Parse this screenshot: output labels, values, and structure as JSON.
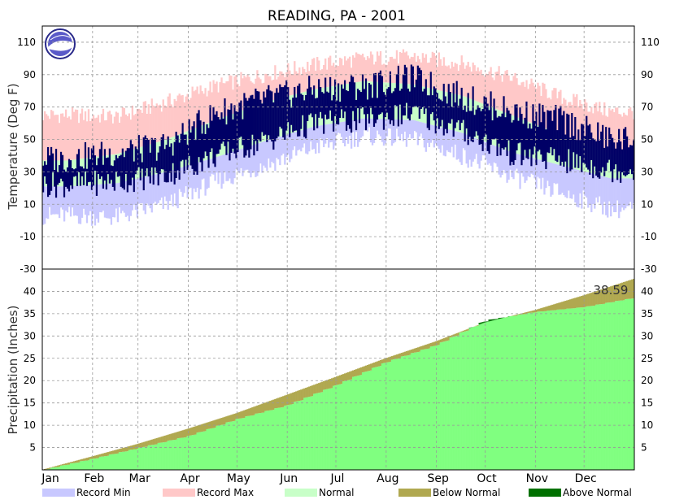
{
  "chart_data": {
    "type": "area",
    "title": "READING, PA - 2001",
    "months": [
      "Jan",
      "Feb",
      "Mar",
      "Apr",
      "May",
      "Jun",
      "Jul",
      "Aug",
      "Sep",
      "Oct",
      "Nov",
      "Dec"
    ],
    "temperature": {
      "ylabel": "Temperature (Deg F)",
      "ylim": [
        -30,
        120
      ],
      "ticks": [
        -30,
        -10,
        10,
        30,
        50,
        70,
        90,
        110
      ],
      "record_max_monthly": [
        65,
        64,
        73,
        83,
        90,
        96,
        100,
        101,
        97,
        88,
        76,
        67
      ],
      "record_min_monthly": [
        3,
        2,
        10,
        24,
        34,
        45,
        52,
        50,
        40,
        27,
        17,
        7
      ],
      "normal_high_monthly": [
        37,
        41,
        50,
        62,
        73,
        81,
        86,
        84,
        77,
        65,
        53,
        41
      ],
      "normal_low_monthly": [
        21,
        23,
        30,
        39,
        49,
        58,
        63,
        62,
        54,
        42,
        34,
        26
      ],
      "actual_high_monthly": [
        38,
        42,
        46,
        66,
        75,
        81,
        83,
        88,
        76,
        67,
        62,
        50
      ],
      "actual_low_monthly": [
        22,
        24,
        28,
        40,
        49,
        60,
        62,
        66,
        55,
        41,
        37,
        31
      ]
    },
    "precipitation": {
      "ylabel": "Precipitation (Inches)",
      "ylim": [
        0,
        45
      ],
      "ticks": [
        5,
        10,
        15,
        20,
        25,
        30,
        35,
        40
      ],
      "annual_total_label": "38.59",
      "normal_cumulative_month_end": [
        3.0,
        5.8,
        9.2,
        12.7,
        16.8,
        20.8,
        25.0,
        28.8,
        33.0,
        35.8,
        39.1,
        42.8
      ],
      "actual_cumulative_month_end": [
        2.5,
        4.9,
        7.6,
        11.4,
        14.5,
        19.0,
        24.2,
        28.0,
        33.5,
        35.4,
        36.5,
        38.59
      ]
    },
    "legend": [
      {
        "label": "Record Min",
        "color": "#c8c8ff"
      },
      {
        "label": "Record Max",
        "color": "#ffc8c8"
      },
      {
        "label": "Normal",
        "color": "#c8ffc8"
      },
      {
        "label": "Below Normal",
        "color": "#b0a850"
      },
      {
        "label": "Above Normal",
        "color": "#007000"
      }
    ],
    "colors": {
      "actual_temp": "#000066",
      "precip_fill": "#80ff80",
      "grid": "#999999"
    }
  }
}
